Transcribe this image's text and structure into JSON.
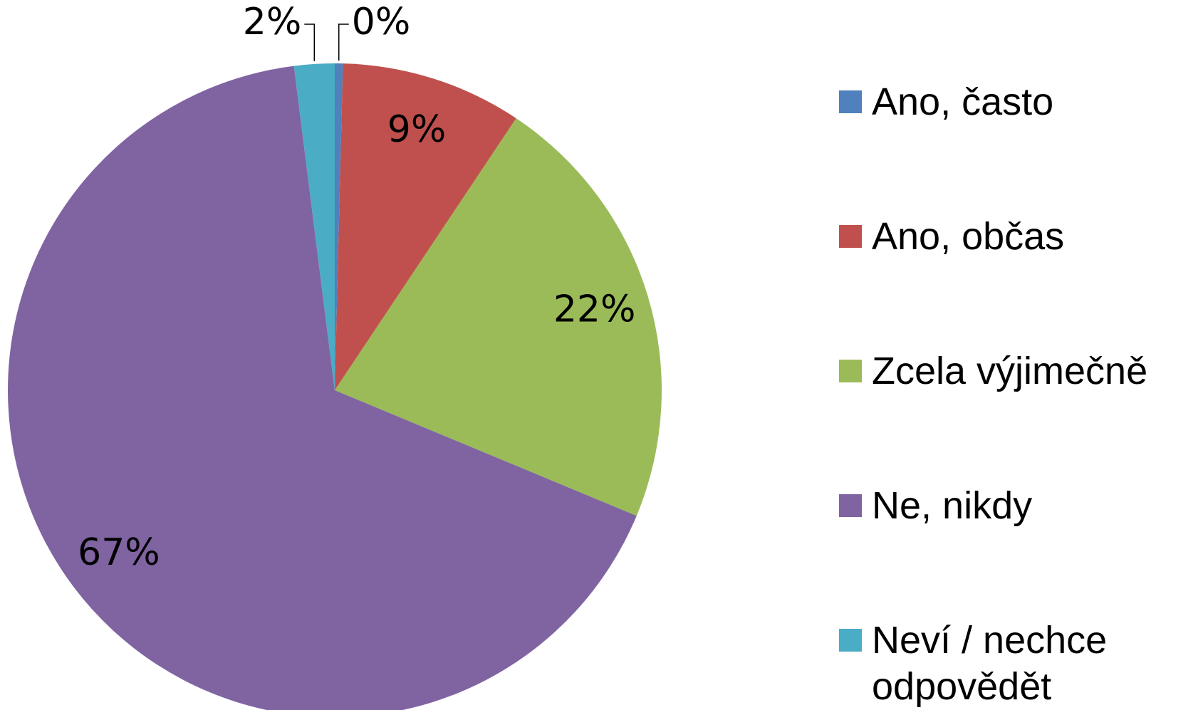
{
  "chart_data": {
    "type": "pie",
    "categories": [
      "Ano, často",
      "Ano, občas",
      "Zcela výjimečně",
      "Ne, nikdy",
      "Neví / nechce odpovědět"
    ],
    "values": [
      0.4,
      9,
      22,
      67,
      2
    ],
    "value_labels": [
      "0%",
      "9%",
      "22%",
      "67%",
      "2%"
    ],
    "colors": [
      "#4f81bd",
      "#c0504d",
      "#9bbb59",
      "#8064a2",
      "#4bacc6"
    ],
    "legend": "right"
  }
}
